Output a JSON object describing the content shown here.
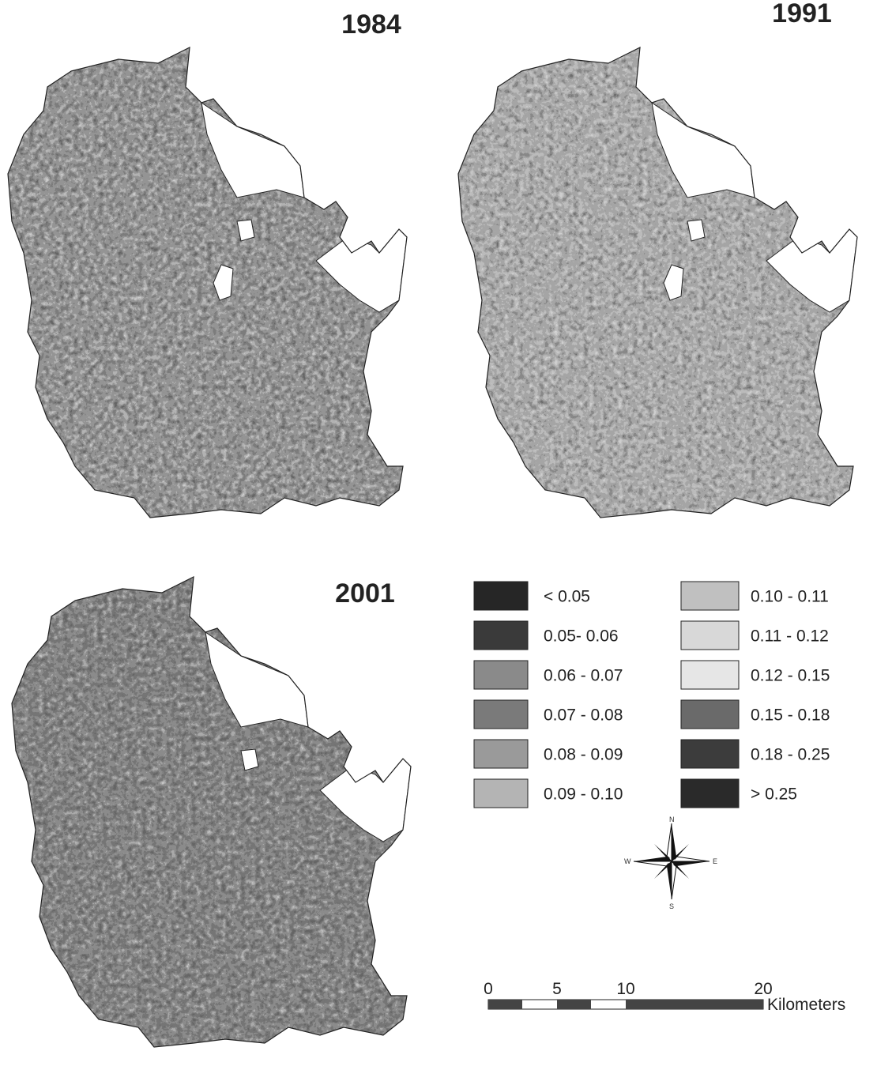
{
  "maps": [
    {
      "year": "1984"
    },
    {
      "year": "1991"
    },
    {
      "year": "2001"
    }
  ],
  "legend": [
    {
      "label": "< 0.05",
      "color": "#262626"
    },
    {
      "label": "0.05- 0.06",
      "color": "#3a3a3a"
    },
    {
      "label": "0.06 - 0.07",
      "color": "#8a8a8a"
    },
    {
      "label": "0.07 - 0.08",
      "color": "#7a7a7a"
    },
    {
      "label": "0.08 - 0.09",
      "color": "#9a9a9a"
    },
    {
      "label": "0.09 - 0.10",
      "color": "#b4b4b4"
    },
    {
      "label": "0.10 - 0.11",
      "color": "#c0c0c0"
    },
    {
      "label": "0.11 - 0.12",
      "color": "#d8d8d8"
    },
    {
      "label": "0.12 - 0.15",
      "color": "#e6e6e6"
    },
    {
      "label": "0.15 - 0.18",
      "color": "#6a6a6a"
    },
    {
      "label": "0.18 - 0.25",
      "color": "#3c3c3c"
    },
    {
      "label": "> 0.25",
      "color": "#2a2a2a"
    }
  ],
  "compass": {
    "n": "N",
    "e": "E",
    "s": "S",
    "w": "W"
  },
  "scale_bar": {
    "ticks": [
      0,
      5,
      10,
      20
    ],
    "unit": "Kilometers"
  }
}
